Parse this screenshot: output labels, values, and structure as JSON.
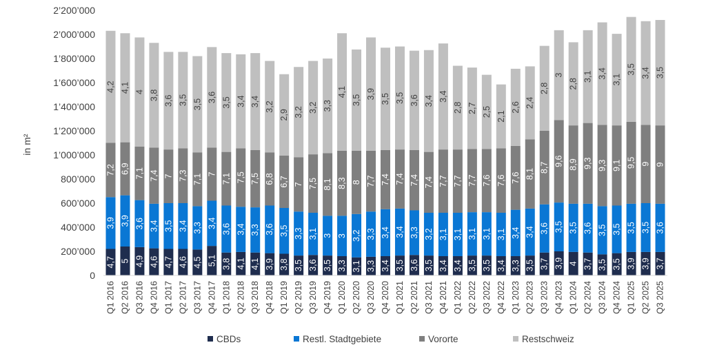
{
  "chart_data": {
    "type": "bar",
    "stacked": true,
    "ylabel": "in m²",
    "ylim": [
      0,
      2200000
    ],
    "yticks": [
      "0",
      "200’000",
      "400’000",
      "600’000",
      "800’000",
      "1’000’000",
      "1’200’000",
      "1’400’000",
      "1’600’000",
      "1’800’000",
      "2’000’000",
      "2’200’000"
    ],
    "ytick_values": [
      0,
      200000,
      400000,
      600000,
      800000,
      1000000,
      1200000,
      1400000,
      1600000,
      1800000,
      2000000,
      2200000
    ],
    "grid": false,
    "legend_position": "bottom",
    "categories": [
      "Q1 2016",
      "Q2 2016",
      "Q3 2016",
      "Q4 2016",
      "Q1 2017",
      "Q2 2017",
      "Q3 2017",
      "Q4 2017",
      "Q1 2018",
      "Q2 2018",
      "Q3 2018",
      "Q4 2018",
      "Q1 2019",
      "Q2 2019",
      "Q3 2019",
      "Q4 2019",
      "Q1 2020",
      "Q2 2020",
      "Q3 2020",
      "Q4 2020",
      "Q1 2021",
      "Q2 2021",
      "Q3 2021",
      "Q4 2021",
      "Q1 2022",
      "Q2 2022",
      "Q3 2022",
      "Q4 2022",
      "Q1 2023",
      "Q2 2023",
      "Q3 2023",
      "Q4 2023",
      "Q1 2024",
      "Q2 2024",
      "Q3 2024",
      "Q4 2024",
      "Q1 2025",
      "Q2 2025",
      "Q3 2025"
    ],
    "series": [
      {
        "name": "CBDs",
        "color": "#1f2d4e",
        "label_color": "#ffffff",
        "values": [
          220000,
          240000,
          235000,
          225000,
          220000,
          220000,
          215000,
          245000,
          190000,
          195000,
          190000,
          185000,
          180000,
          165000,
          170000,
          165000,
          160000,
          150000,
          155000,
          160000,
          165000,
          170000,
          165000,
          160000,
          160000,
          165000,
          165000,
          160000,
          160000,
          165000,
          190000,
          200000,
          195000,
          190000,
          175000,
          185000,
          195000,
          195000,
          195000
        ],
        "labels": [
          "4,7",
          "5",
          "4,9",
          "4,6",
          "4,7",
          "4,6",
          "4,5",
          "5,1",
          "3,8",
          "4,1",
          "4,1",
          "3,9",
          "3,8",
          "3,5",
          "3,6",
          "3,5",
          "3,3",
          "3,1",
          "3,3",
          "3,4",
          "3,5",
          "3,6",
          "3,5",
          "3,4",
          "3,4",
          "3,5",
          "3,5",
          "3,4",
          "3,3",
          "3,5",
          "3,7",
          "3,9",
          "4",
          "3,7",
          "3,5",
          "3,5",
          "3,9",
          "3,9",
          "3,7"
        ]
      },
      {
        "name": "Restl. Stadtgebiete",
        "color": "#0a77d4",
        "label_color": "#ffffff",
        "values": [
          430000,
          425000,
          390000,
          370000,
          380000,
          380000,
          360000,
          375000,
          390000,
          375000,
          375000,
          395000,
          380000,
          365000,
          350000,
          330000,
          335000,
          360000,
          375000,
          390000,
          390000,
          370000,
          355000,
          360000,
          360000,
          360000,
          360000,
          360000,
          385000,
          390000,
          400000,
          405000,
          400000,
          405000,
          400000,
          395000,
          400000,
          405000,
          400000
        ],
        "labels": [
          "3,9",
          "3,9",
          "3,6",
          "3,4",
          "3,5",
          "3,4",
          "3,3",
          "3,4",
          "3,6",
          "3,4",
          "3,3",
          "3,6",
          "3,5",
          "3,3",
          "3,1",
          "3",
          "3",
          "3,2",
          "3,3",
          "3,4",
          "3,4",
          "3,3",
          "3,2",
          "3,1",
          "3,1",
          "3,1",
          "3,1",
          "3,1",
          "3,4",
          "3,4",
          "3,6",
          "3,5",
          "3,5",
          "3,6",
          "3,5",
          "3,5",
          "3,5",
          "3,5",
          "3,6"
        ]
      },
      {
        "name": "Vororte",
        "color": "#7f7f7f",
        "label_color": "#ffffff",
        "values": [
          450000,
          440000,
          445000,
          465000,
          445000,
          455000,
          445000,
          440000,
          445000,
          485000,
          475000,
          440000,
          435000,
          450000,
          485000,
          520000,
          540000,
          525000,
          505000,
          490000,
          490000,
          500000,
          505000,
          525000,
          525000,
          525000,
          525000,
          535000,
          530000,
          575000,
          610000,
          685000,
          650000,
          670000,
          675000,
          665000,
          680000,
          650000,
          650000
        ],
        "labels": [
          "7,2",
          "6,9",
          "7,1",
          "7,4",
          "7",
          "7,3",
          "7,1",
          "7",
          "7,1",
          "7,5",
          "7,5",
          "6,8",
          "6,7",
          "7",
          "7,5",
          "8,1",
          "8,3",
          "8",
          "7,7",
          "7,4",
          "7,4",
          "7,4",
          "7,4",
          "7,7",
          "7,7",
          "7,7",
          "7,6",
          "7,6",
          "7,6",
          "8,1",
          "8,7",
          "9,6",
          "8,9",
          "9,3",
          "9,3",
          "9,1",
          "9,5",
          "9",
          "9"
        ]
      },
      {
        "name": "Restschweiz",
        "color": "#bfbfbf",
        "label_color": "#404040",
        "values": [
          930000,
          905000,
          905000,
          870000,
          810000,
          800000,
          800000,
          835000,
          820000,
          780000,
          805000,
          760000,
          675000,
          750000,
          775000,
          785000,
          975000,
          840000,
          940000,
          850000,
          855000,
          825000,
          845000,
          880000,
          695000,
          675000,
          615000,
          530000,
          640000,
          605000,
          705000,
          745000,
          690000,
          770000,
          850000,
          760000,
          870000,
          860000,
          875000
        ],
        "labels": [
          "4,2",
          "4,1",
          "4",
          "3,8",
          "3,6",
          "3,5",
          "3,5",
          "3,6",
          "3,5",
          "3,4",
          "3,4",
          "3,2",
          "2,9",
          "3,2",
          "3,2",
          "3,3",
          "4,1",
          "3,5",
          "3,9",
          "3,5",
          "3,5",
          "3,6",
          "3,4",
          "3,4",
          "2,8",
          "2,7",
          "2,5",
          "2,1",
          "2,6",
          "2,4",
          "2,8",
          "3",
          "2,8",
          "3,1",
          "3,4",
          "3,1",
          "3,5",
          "3,4",
          "3,5"
        ]
      }
    ]
  }
}
